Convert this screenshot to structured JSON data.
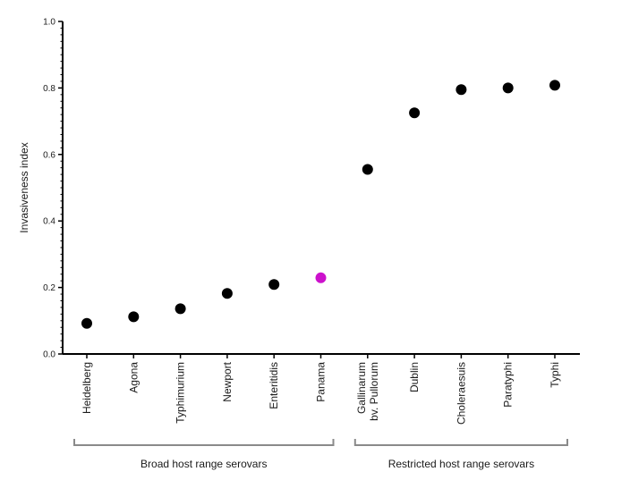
{
  "chart_data": {
    "type": "scatter",
    "ylabel": "Invasiveness index",
    "ylim": [
      0,
      1.0
    ],
    "yticks": [
      "0.0",
      "0.2",
      "0.4",
      "0.6",
      "0.8",
      "1.0"
    ],
    "categories": [
      "Heidelberg",
      "Agona",
      "Typhimurium",
      "Newport",
      "Enteritidis",
      "Panama",
      "Gallinarum bv. Pullorum",
      "Dublin",
      "Choleraesuis",
      "Paratyphi",
      "Typhi"
    ],
    "category_lines": [
      [
        "Heidelberg"
      ],
      [
        "Agona"
      ],
      [
        "Typhimurium"
      ],
      [
        "Newport"
      ],
      [
        "Enteritidis"
      ],
      [
        "Panama"
      ],
      [
        "Gallinarum",
        "bv. Pullorum"
      ],
      [
        "Dublin"
      ],
      [
        "Choleraesuis"
      ],
      [
        "Paratyphi"
      ],
      [
        "Typhi"
      ]
    ],
    "values": [
      0.092,
      0.112,
      0.136,
      0.182,
      0.209,
      0.229,
      0.555,
      0.725,
      0.795,
      0.8,
      0.808
    ],
    "point_colors": [
      "#000000",
      "#000000",
      "#000000",
      "#000000",
      "#000000",
      "#cc11cc",
      "#000000",
      "#000000",
      "#000000",
      "#000000",
      "#000000"
    ],
    "groups": [
      {
        "label": "Broad host range serovars",
        "start": 0,
        "end": 5
      },
      {
        "label": "Restricted host range serovars",
        "start": 6,
        "end": 10
      }
    ],
    "grid": false,
    "colors": {
      "axis": "#000000",
      "bracket": "#8a8a8a",
      "highlight": "#cc11cc",
      "point": "#000000"
    }
  }
}
